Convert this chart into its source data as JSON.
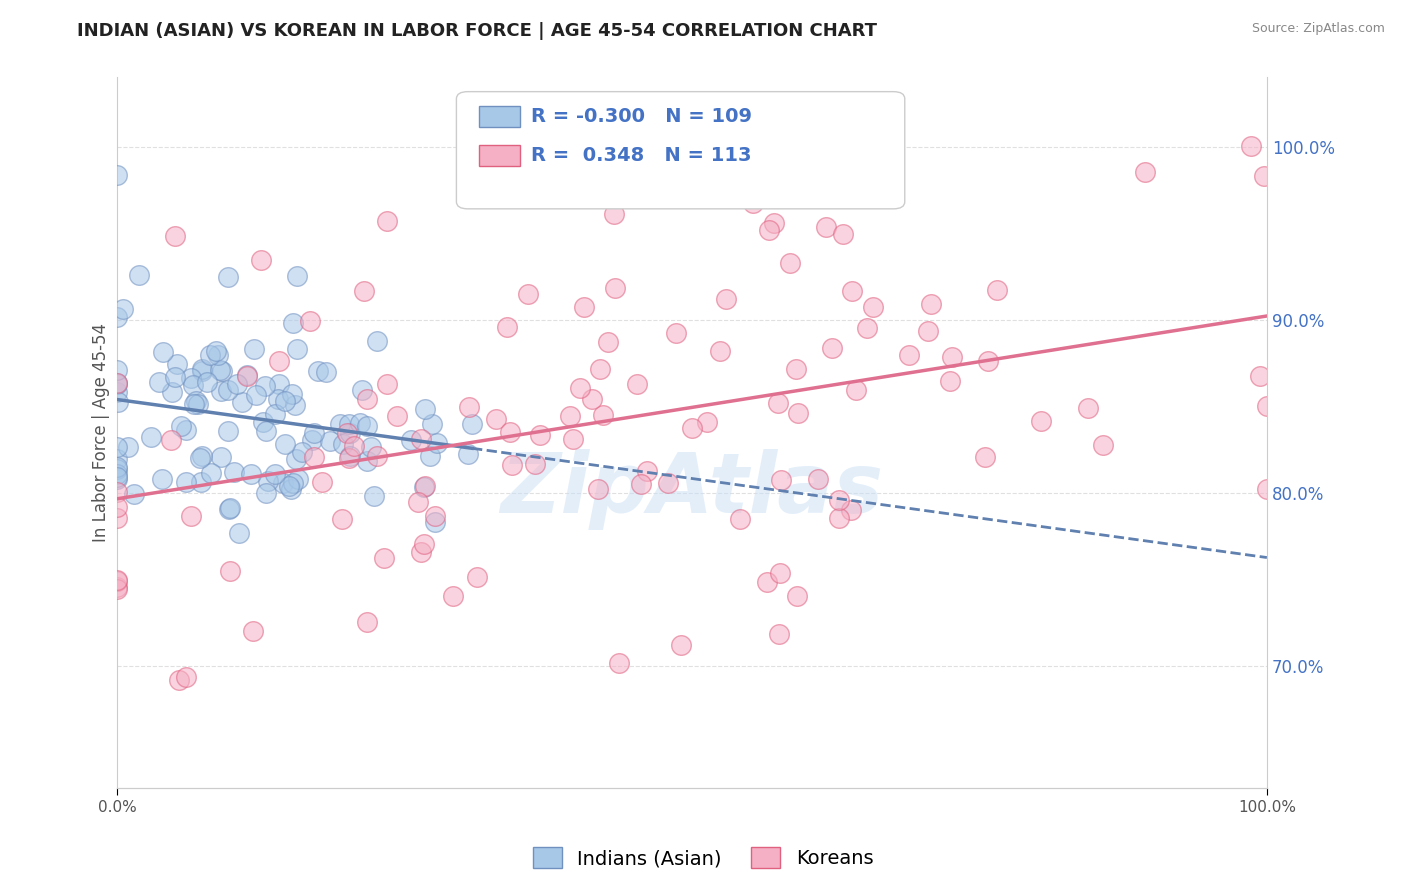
{
  "title": "INDIAN (ASIAN) VS KOREAN IN LABOR FORCE | AGE 45-54 CORRELATION CHART",
  "source": "Source: ZipAtlas.com",
  "ylabel": "In Labor Force | Age 45-54",
  "right_yticks": [
    70.0,
    80.0,
    90.0,
    100.0
  ],
  "legend_labels": [
    "Indians (Asian)",
    "Koreans"
  ],
  "legend_R": [
    -0.3,
    0.348
  ],
  "legend_N": [
    109,
    113
  ],
  "blue_fill": "#a8c8e8",
  "pink_fill": "#f5b0c5",
  "blue_edge": "#7090c0",
  "pink_edge": "#e06080",
  "blue_line_color": "#6080b0",
  "pink_line_color": "#e07090",
  "watermark": "ZipAtlas",
  "background_color": "#ffffff",
  "grid_color": "#e0e0e0",
  "seed": 42,
  "blue_R": -0.3,
  "blue_N": 109,
  "pink_R": 0.348,
  "pink_N": 113,
  "x_min": 0.0,
  "x_max": 100.0,
  "y_min": 63.0,
  "y_max": 104.0,
  "title_fontsize": 13,
  "axis_fontsize": 11,
  "scatter_size": 200,
  "scatter_alpha": 0.55,
  "legend_fontsize": 14,
  "right_tick_color": "#4472c4",
  "legend_text_color": "#4472c4",
  "watermark_color": "#c8dff5",
  "watermark_alpha": 0.5
}
